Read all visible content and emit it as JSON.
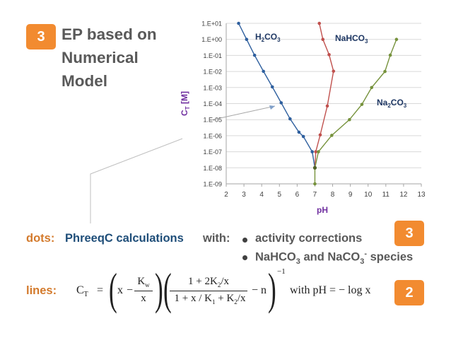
{
  "badge_top": "3",
  "title": {
    "line1": "EP based on",
    "line2": "Numerical",
    "line3": "Model"
  },
  "chart_data": {
    "type": "scatter",
    "xlabel": "pH",
    "ylabel": "CT [M]",
    "ylabel_main": "C",
    "ylabel_sub": "T",
    "ylabel_unit": " [M]",
    "xlim": [
      2,
      13
    ],
    "ylim_log10": [
      -9,
      1
    ],
    "y_scale": "log",
    "x_ticks": [
      "2",
      "3",
      "4",
      "5",
      "6",
      "7",
      "8",
      "9",
      "10",
      "11",
      "12",
      "13"
    ],
    "y_ticks": [
      "1.E-09",
      "1.E-08",
      "1.E-07",
      "1.E-06",
      "1.E-05",
      "1.E-04",
      "1.E-03",
      "1.E-02",
      "1.E-01",
      "1.E+00",
      "1.E+01"
    ],
    "grid": "horizontal",
    "labels": [
      {
        "main": "H",
        "sub1": "2",
        "mid": "CO",
        "sub2": "3"
      },
      {
        "main": "NaHCO",
        "sub1": "3",
        "mid": "",
        "sub2": ""
      },
      {
        "main": "Na",
        "sub1": "2",
        "mid": "CO",
        "sub2": "3"
      }
    ],
    "series": [
      {
        "color": "#2e5f9e",
        "x": [
          2.7,
          3.15,
          3.6,
          4.1,
          4.6,
          5.1,
          5.6,
          6.1,
          6.35,
          6.85,
          7.0
        ],
        "y_log10": [
          1.0,
          0.0,
          -0.99,
          -1.99,
          -2.96,
          -3.95,
          -4.95,
          -5.78,
          -6.05,
          -7.0,
          -8.0
        ]
      },
      {
        "color": "#c0504d",
        "x": [
          7.25,
          7.45,
          7.8,
          8.05,
          7.7,
          7.3,
          7.05,
          7.0
        ],
        "y_log10": [
          1.0,
          0.0,
          -0.95,
          -1.98,
          -4.15,
          -5.95,
          -7.0,
          -8.0
        ]
      },
      {
        "color": "#76923c",
        "x": [
          11.6,
          11.25,
          10.95,
          10.2,
          9.65,
          8.95,
          7.95,
          7.2,
          7.0,
          7.0
        ],
        "y_log10": [
          0.0,
          -0.98,
          -2.0,
          -3.0,
          -4.05,
          -5.0,
          -5.98,
          -7.0,
          -8.0,
          -9.0
        ]
      }
    ]
  },
  "dots": {
    "label": "dots:",
    "text": "PhreeqC calculations",
    "with": "with:"
  },
  "bullets": {
    "b1": "activity corrections",
    "b2_a": "NaHCO",
    "b2_b": "3",
    "b2_c": " and NaCO",
    "b2_d": "3",
    "b2_e": "-",
    "b2_f": " species"
  },
  "badge_mid": "3",
  "lines": {
    "label": "lines:"
  },
  "formula": {
    "lhs": "C",
    "lhs_sub": "T",
    "eq": "=",
    "x": "x",
    "minus": "−",
    "kw": "K",
    "kw_sub": "w",
    "den_x": "x",
    "num2": "1 + 2K",
    "num2_sub": "2",
    "num2_tail": "/x",
    "den2": "1 + x / K",
    "den2_sub1": "1",
    "den2_mid": " + K",
    "den2_sub2": "2",
    "den2_tail": "/x",
    "minus_n": "− n",
    "exp": "−1",
    "with": "with  pH = − log x"
  },
  "badge_bottom": "2"
}
